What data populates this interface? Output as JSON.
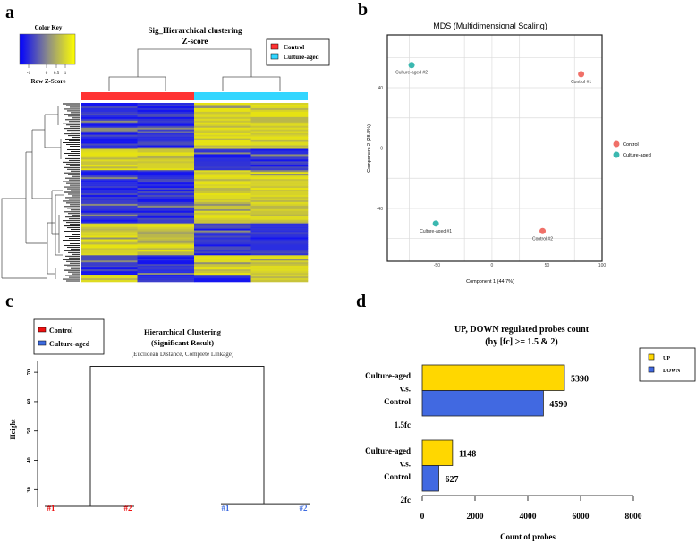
{
  "panel_labels": {
    "a": "a",
    "b": "b",
    "c": "c",
    "d": "d"
  },
  "chart_data": [
    {
      "type": "heatmap",
      "panel": "a",
      "title": "Sig_Hierarchical clustering",
      "subtitle": "Z-score",
      "color_key": {
        "title": "Color Key",
        "label": "Row Z-Score",
        "ticks": [
          "-1",
          "0",
          "0.5",
          "1"
        ],
        "low_color": "#0000ff",
        "high_color": "#ffff00"
      },
      "legend": [
        {
          "name": "Control",
          "color": "#ff3333"
        },
        {
          "name": "Culture-aged",
          "color": "#33d6ff"
        }
      ],
      "columns": [
        "Control",
        "Control",
        "Culture-aged",
        "Culture-aged"
      ],
      "row_blocks": [
        {
          "rows": 26,
          "pattern": [
            -1,
            -1,
            1,
            1
          ]
        },
        {
          "rows": 12,
          "pattern": [
            1,
            1,
            -1,
            -1
          ]
        },
        {
          "rows": 30,
          "pattern": [
            -1,
            -1,
            1,
            1
          ]
        },
        {
          "rows": 18,
          "pattern": [
            1,
            1,
            -1,
            -1
          ]
        },
        {
          "rows": 5,
          "pattern": [
            -1,
            -1,
            1,
            1
          ]
        },
        {
          "rows": 6,
          "pattern": [
            -1,
            -1,
            1,
            1
          ]
        },
        {
          "rows": 4,
          "pattern": [
            1,
            -1,
            -1,
            1
          ]
        }
      ]
    },
    {
      "type": "scatter",
      "panel": "b",
      "title": "MDS (Multidimensional Scaling)",
      "xlabel": "Component 1 (44.7%)",
      "ylabel": "Component 2 (28.8%)",
      "xlim": [
        -95,
        100
      ],
      "ylim": [
        -75,
        75
      ],
      "xticks": [
        "-50",
        "0",
        "50",
        "100"
      ],
      "xtick_values": [
        -50,
        0,
        50,
        100
      ],
      "yticks": [
        "40",
        "0",
        "-40"
      ],
      "ytick_values": [
        40,
        0,
        -40
      ],
      "grid": true,
      "legend_position": "right",
      "series": [
        {
          "name": "Control",
          "color": "#f07068",
          "points": [
            {
              "label": "Control #1",
              "x": 81,
              "y": 49
            },
            {
              "label": "Control #2",
              "x": 46,
              "y": -55
            }
          ]
        },
        {
          "name": "Culture-aged",
          "color": "#3bb8b0",
          "points": [
            {
              "label": "Culture-aged #2",
              "x": -73,
              "y": 55
            },
            {
              "label": "Culture-aged #1",
              "x": -51,
              "y": -50
            }
          ]
        }
      ]
    },
    {
      "type": "dendrogram",
      "panel": "c",
      "title": "Hierarchical Clustering",
      "subtitle": "(Significant Result)",
      "note": "(Euclidean Distance, Complete Linkage)",
      "ylabel": "Height",
      "ylim": [
        24,
        74
      ],
      "yticks": [
        "30",
        "40",
        "50",
        "60",
        "70"
      ],
      "ytick_values": [
        30,
        40,
        50,
        60,
        70
      ],
      "legend": [
        {
          "name": "Control",
          "color": "#ee1111"
        },
        {
          "name": "Culture-aged",
          "color": "#3d6be0"
        }
      ],
      "leaves": [
        {
          "label": "#1",
          "group": "Control"
        },
        {
          "label": "#2",
          "group": "Control"
        },
        {
          "label": "#1",
          "group": "Culture-aged"
        },
        {
          "label": "#2",
          "group": "Culture-aged"
        }
      ],
      "merges": {
        "control_height": 24.3,
        "culture_height": 25.2,
        "root_height": 72
      }
    },
    {
      "type": "bar",
      "panel": "d",
      "orientation": "horizontal",
      "title": "UP, DOWN regulated probes count",
      "subtitle": "(by [fc] >= 1.5 & 2)",
      "xlabel": "Count of probes",
      "xlim": [
        0,
        8000
      ],
      "xticks": [
        "0",
        "2000",
        "4000",
        "6000",
        "8000"
      ],
      "xtick_values": [
        0,
        2000,
        4000,
        6000,
        8000
      ],
      "legend_position": "top-right",
      "groups": [
        {
          "label_lines": [
            "Culture-aged",
            "v.s.",
            "Control"
          ],
          "threshold": "1.5fc"
        },
        {
          "label_lines": [
            "Culture-aged",
            "v.s.",
            "Control"
          ],
          "threshold": "2fc"
        }
      ],
      "series": [
        {
          "name": "UP",
          "color": "#ffd700",
          "values": [
            5390,
            1148
          ],
          "labels": [
            "5390",
            "1148"
          ]
        },
        {
          "name": "DOWN",
          "color": "#4169e1",
          "values": [
            4590,
            627
          ],
          "labels": [
            "4590",
            "627"
          ]
        }
      ]
    }
  ]
}
